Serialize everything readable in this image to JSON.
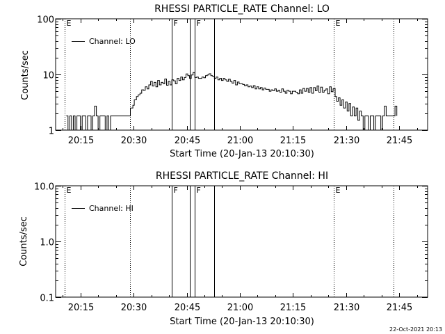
{
  "chart_data": [
    {
      "type": "line",
      "title": "RHESSI PARTICLE_RATE Channel: LO",
      "xlabel": "Start Time (20-Jan-13 20:10:30)",
      "ylabel": "Counts/sec",
      "x_range_minutes": [
        20.0,
        111.0
      ],
      "y_scale": "log",
      "ylim": [
        1,
        100
      ],
      "y_ticks": [
        {
          "value": 1,
          "label": "1"
        },
        {
          "value": 10,
          "label": "10"
        },
        {
          "value": 100,
          "label": "100"
        }
      ],
      "x_ticks": [
        {
          "minutes": 15,
          "label": "20:15"
        },
        {
          "minutes": 30,
          "label": "20:30"
        },
        {
          "minutes": 45,
          "label": "20:45"
        },
        {
          "minutes": 60,
          "label": "21:00"
        },
        {
          "minutes": 75,
          "label": "21:15"
        },
        {
          "minutes": 90,
          "label": "21:30"
        },
        {
          "minutes": 105,
          "label": "21:45"
        }
      ],
      "grid": false,
      "legend": {
        "label": "Channel: LO",
        "placement": "top-left"
      },
      "markers": [
        {
          "minutes": 10.5,
          "label": "E",
          "style": "dotted"
        },
        {
          "minutes": 29.0,
          "label": "",
          "style": "dotted"
        },
        {
          "minutes": 40.7,
          "label": "F",
          "style": "solid"
        },
        {
          "minutes": 45.8,
          "label": "",
          "style": "solid"
        },
        {
          "minutes": 47.3,
          "label": "F",
          "style": "solid"
        },
        {
          "minutes": 52.8,
          "label": "",
          "style": "solid"
        },
        {
          "minutes": 86.5,
          "label": "E",
          "style": "dotted"
        },
        {
          "minutes": 103.4,
          "label": "",
          "style": "dotted"
        }
      ],
      "series": [
        {
          "points": [
            [
              11.0,
              1.8
            ],
            [
              11.5,
              1.0
            ],
            [
              12.0,
              1.8
            ],
            [
              12.5,
              1.0
            ],
            [
              13.0,
              1.8
            ],
            [
              13.5,
              1.0
            ],
            [
              14.0,
              1.8
            ],
            [
              14.5,
              1.8
            ],
            [
              15.0,
              1.0
            ],
            [
              15.5,
              1.8
            ],
            [
              16.0,
              1.8
            ],
            [
              16.5,
              1.0
            ],
            [
              17.0,
              1.8
            ],
            [
              17.5,
              1.8
            ],
            [
              18.0,
              1.0
            ],
            [
              18.5,
              1.8
            ],
            [
              19.0,
              2.7
            ],
            [
              19.5,
              1.8
            ],
            [
              20.0,
              1.0
            ],
            [
              20.5,
              1.8
            ],
            [
              21.0,
              1.8
            ],
            [
              21.5,
              1.8
            ],
            [
              22.0,
              1.0
            ],
            [
              22.5,
              1.8
            ],
            [
              23.0,
              1.0
            ],
            [
              23.5,
              1.8
            ],
            [
              24.0,
              1.8
            ],
            [
              25.0,
              1.8
            ],
            [
              26.0,
              1.8
            ],
            [
              27.0,
              1.8
            ],
            [
              28.0,
              1.8
            ],
            [
              29.0,
              1.8
            ],
            [
              29.1,
              2.5
            ],
            [
              29.8,
              2.8
            ],
            [
              30.2,
              3.5
            ],
            [
              30.8,
              4.0
            ],
            [
              31.3,
              4.3
            ],
            [
              31.8,
              4.6
            ],
            [
              32.3,
              5.3
            ],
            [
              32.8,
              5.2
            ],
            [
              33.3,
              6.0
            ],
            [
              33.8,
              5.5
            ],
            [
              34.3,
              6.5
            ],
            [
              34.8,
              7.5
            ],
            [
              35.3,
              6.2
            ],
            [
              35.8,
              7.2
            ],
            [
              36.3,
              6.0
            ],
            [
              36.8,
              7.8
            ],
            [
              37.3,
              6.5
            ],
            [
              37.8,
              7.2
            ],
            [
              38.3,
              6.8
            ],
            [
              38.8,
              8.3
            ],
            [
              39.3,
              6.4
            ],
            [
              39.8,
              7.5
            ],
            [
              40.3,
              6.5
            ],
            [
              40.8,
              8.0
            ],
            [
              41.3,
              7.7
            ],
            [
              41.8,
              6.8
            ],
            [
              42.3,
              8.5
            ],
            [
              42.8,
              7.8
            ],
            [
              43.3,
              9.0
            ],
            [
              43.8,
              8.0
            ],
            [
              44.3,
              8.8
            ],
            [
              44.8,
              10.2
            ],
            [
              45.3,
              9.5
            ],
            [
              45.8,
              8.5
            ],
            [
              46.3,
              9.8
            ],
            [
              46.8,
              10.8
            ],
            [
              47.3,
              8.8
            ],
            [
              47.8,
              9.0
            ],
            [
              48.3,
              8.5
            ],
            [
              48.8,
              8.5
            ],
            [
              49.3,
              9.0
            ],
            [
              49.8,
              8.7
            ],
            [
              50.3,
              9.5
            ],
            [
              50.8,
              9.8
            ],
            [
              51.3,
              10.3
            ],
            [
              51.8,
              9.5
            ],
            [
              52.3,
              9.3
            ],
            [
              52.8,
              8.5
            ],
            [
              53.3,
              9.0
            ],
            [
              53.8,
              8.0
            ],
            [
              54.3,
              8.5
            ],
            [
              54.8,
              7.8
            ],
            [
              55.3,
              8.5
            ],
            [
              55.8,
              8.0
            ],
            [
              56.3,
              7.5
            ],
            [
              56.8,
              8.2
            ],
            [
              57.3,
              7.5
            ],
            [
              57.8,
              7.0
            ],
            [
              58.3,
              7.8
            ],
            [
              58.8,
              6.5
            ],
            [
              59.3,
              7.3
            ],
            [
              59.8,
              6.8
            ],
            [
              60.3,
              6.8
            ],
            [
              60.8,
              6.6
            ],
            [
              61.3,
              6.3
            ],
            [
              61.8,
              6.5
            ],
            [
              62.3,
              6.0
            ],
            [
              62.8,
              6.2
            ],
            [
              63.3,
              5.8
            ],
            [
              63.8,
              6.3
            ],
            [
              64.3,
              5.5
            ],
            [
              64.8,
              6.0
            ],
            [
              65.3,
              5.5
            ],
            [
              65.8,
              5.8
            ],
            [
              66.3,
              5.3
            ],
            [
              66.8,
              5.7
            ],
            [
              67.3,
              5.4
            ],
            [
              67.8,
              5.4
            ],
            [
              68.3,
              5.0
            ],
            [
              68.8,
              5.3
            ],
            [
              69.3,
              5.1
            ],
            [
              69.8,
              5.5
            ],
            [
              70.3,
              5.0
            ],
            [
              70.8,
              5.2
            ],
            [
              71.3,
              4.8
            ],
            [
              71.8,
              5.5
            ],
            [
              72.3,
              5.0
            ],
            [
              72.8,
              4.6
            ],
            [
              73.3,
              5.2
            ],
            [
              73.8,
              5.0
            ],
            [
              74.3,
              4.5
            ],
            [
              74.8,
              5.0
            ],
            [
              75.3,
              5.0
            ],
            [
              75.8,
              4.8
            ],
            [
              76.3,
              4.5
            ],
            [
              76.8,
              5.3
            ],
            [
              77.3,
              4.6
            ],
            [
              77.8,
              5.6
            ],
            [
              78.3,
              5.0
            ],
            [
              78.8,
              5.6
            ],
            [
              79.3,
              4.8
            ],
            [
              79.8,
              5.8
            ],
            [
              80.3,
              4.6
            ],
            [
              80.8,
              5.8
            ],
            [
              81.3,
              5.1
            ],
            [
              81.8,
              6.2
            ],
            [
              82.3,
              4.8
            ],
            [
              82.8,
              5.9
            ],
            [
              83.3,
              4.8
            ],
            [
              83.8,
              5.2
            ],
            [
              84.3,
              5.5
            ],
            [
              84.8,
              4.5
            ],
            [
              85.3,
              6.0
            ],
            [
              85.8,
              4.9
            ],
            [
              86.3,
              5.5
            ],
            [
              86.5,
              5.6
            ],
            [
              86.9,
              4.0
            ],
            [
              87.3,
              3.3
            ],
            [
              87.8,
              3.8
            ],
            [
              88.3,
              2.8
            ],
            [
              88.8,
              3.5
            ],
            [
              89.3,
              2.5
            ],
            [
              89.8,
              3.2
            ],
            [
              90.3,
              2.2
            ],
            [
              90.8,
              3.0
            ],
            [
              91.3,
              1.8
            ],
            [
              91.8,
              2.6
            ],
            [
              92.3,
              1.8
            ],
            [
              92.8,
              2.5
            ],
            [
              93.3,
              1.5
            ],
            [
              93.8,
              2.2
            ],
            [
              94.3,
              1.8
            ],
            [
              94.8,
              1.0
            ],
            [
              95.3,
              1.8
            ],
            [
              95.8,
              1.8
            ],
            [
              96.3,
              1.0
            ],
            [
              96.8,
              1.8
            ],
            [
              97.3,
              1.8
            ],
            [
              97.8,
              1.0
            ],
            [
              98.3,
              1.8
            ],
            [
              98.8,
              1.8
            ],
            [
              99.3,
              1.8
            ],
            [
              99.8,
              1.0
            ],
            [
              100.3,
              1.8
            ],
            [
              100.8,
              2.7
            ],
            [
              101.3,
              1.8
            ],
            [
              101.8,
              1.8
            ],
            [
              102.3,
              1.8
            ],
            [
              102.8,
              1.8
            ],
            [
              103.3,
              1.8
            ],
            [
              103.8,
              2.7
            ],
            [
              104.3,
              1.8
            ]
          ]
        }
      ]
    },
    {
      "type": "line",
      "title": "RHESSI PARTICLE_RATE Channel: HI",
      "xlabel": "Start Time (20-Jan-13 20:10:30)",
      "ylabel": "Counts/sec",
      "x_range_minutes": [
        20.0,
        111.0
      ],
      "y_scale": "log",
      "ylim": [
        0.1,
        10.0
      ],
      "y_ticks": [
        {
          "value": 0.1,
          "label": "0.1"
        },
        {
          "value": 1.0,
          "label": "1.0"
        },
        {
          "value": 10.0,
          "label": "10.0"
        }
      ],
      "x_ticks": [
        {
          "minutes": 15,
          "label": "20:15"
        },
        {
          "minutes": 30,
          "label": "20:30"
        },
        {
          "minutes": 45,
          "label": "20:45"
        },
        {
          "minutes": 60,
          "label": "21:00"
        },
        {
          "minutes": 75,
          "label": "21:15"
        },
        {
          "minutes": 90,
          "label": "21:30"
        },
        {
          "minutes": 105,
          "label": "21:45"
        }
      ],
      "grid": false,
      "legend": {
        "label": "Channel: HI",
        "placement": "top-left"
      },
      "markers": [
        {
          "minutes": 10.5,
          "label": "E",
          "style": "dotted"
        },
        {
          "minutes": 29.0,
          "label": "",
          "style": "dotted"
        },
        {
          "minutes": 40.7,
          "label": "F",
          "style": "solid"
        },
        {
          "minutes": 45.8,
          "label": "",
          "style": "solid"
        },
        {
          "minutes": 47.3,
          "label": "F",
          "style": "solid"
        },
        {
          "minutes": 52.8,
          "label": "",
          "style": "solid"
        },
        {
          "minutes": 86.5,
          "label": "E",
          "style": "dotted"
        },
        {
          "minutes": 103.4,
          "label": "",
          "style": "dotted"
        }
      ],
      "series": [
        {
          "points": []
        }
      ]
    }
  ],
  "footer": {
    "date_stamp": "22-Oct-2021 20:13"
  }
}
